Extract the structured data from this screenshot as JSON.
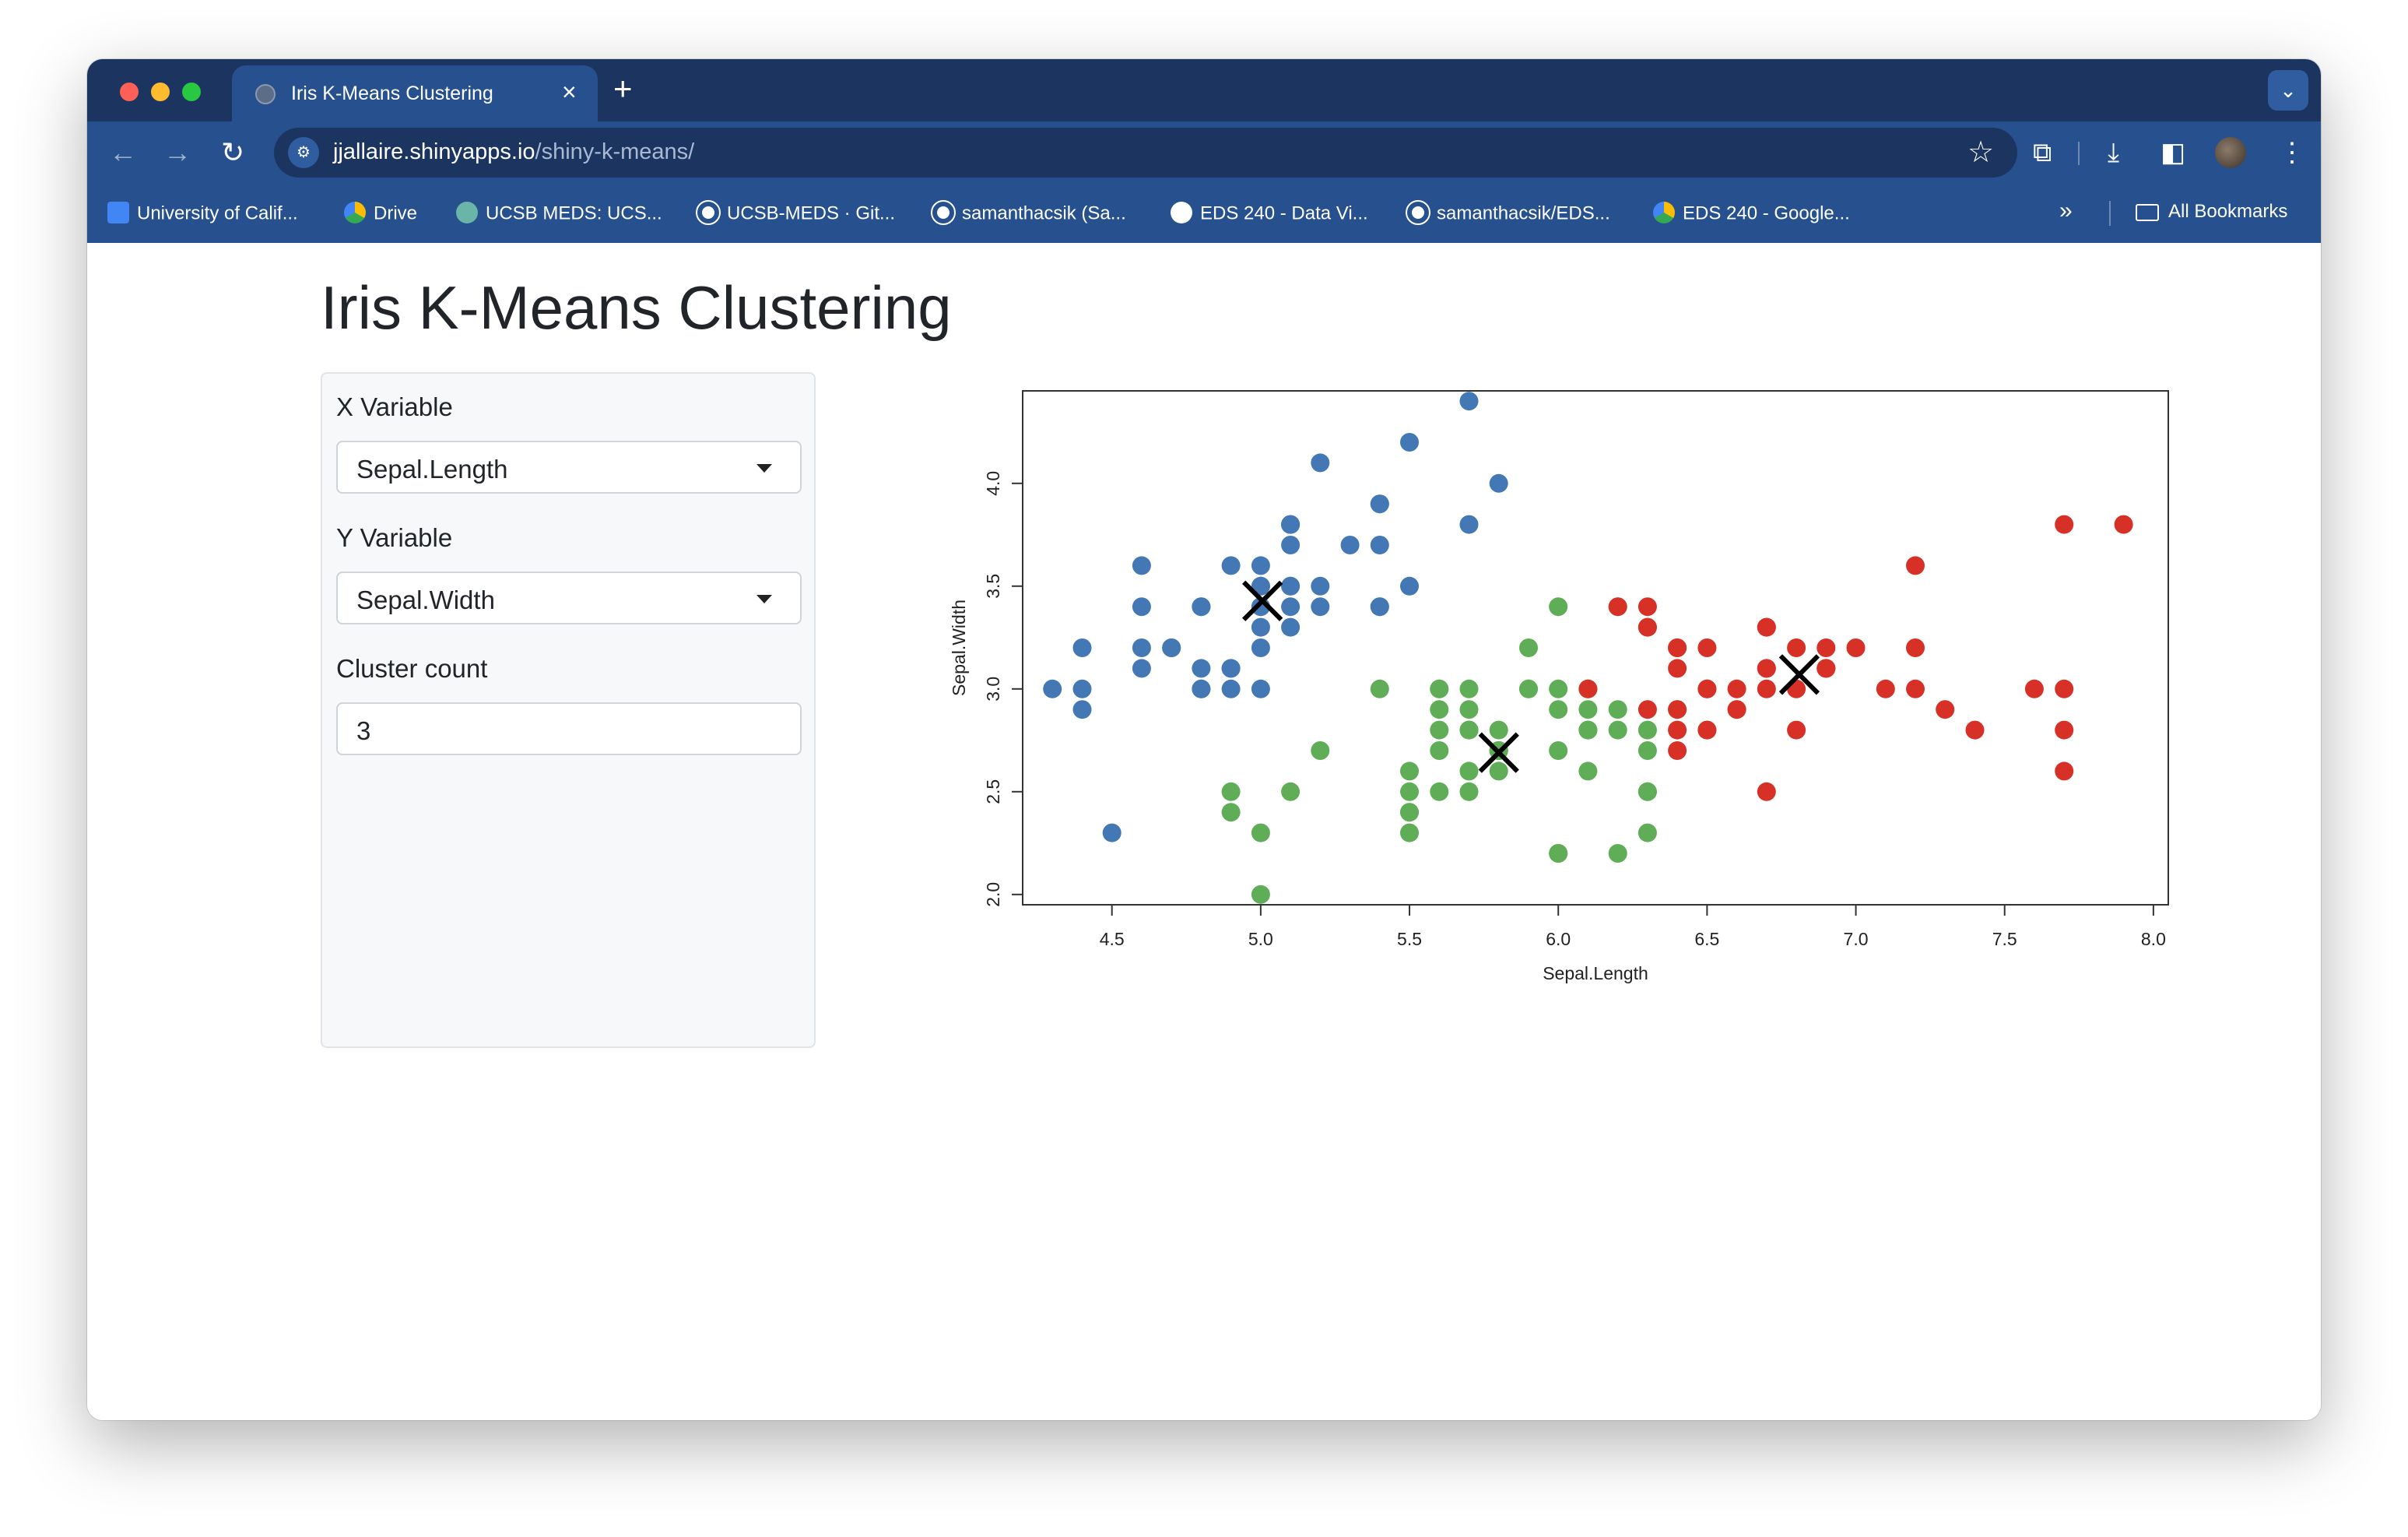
{
  "browser": {
    "tab_title": "Iris K-Means Clustering",
    "url_host": "jjallaire.shinyapps.io",
    "url_path": "/shiny-k-means/",
    "bookmarks": [
      "University of Calif...",
      "Drive",
      "UCSB MEDS: UCS...",
      "UCSB-MEDS · Git...",
      "samanthacsik (Sa...",
      "EDS 240 - Data Vi...",
      "samanthacsik/EDS...",
      "EDS 240 - Google..."
    ],
    "all_bookmarks": "All Bookmarks"
  },
  "page": {
    "title": "Iris K-Means Clustering",
    "x_label": "X Variable",
    "x_value": "Sepal.Length",
    "y_label": "Y Variable",
    "y_value": "Sepal.Width",
    "k_label": "Cluster count",
    "k_value": "3"
  },
  "colors": {
    "cluster_1": "#4378b4",
    "cluster_2": "#5fad56",
    "cluster_3": "#d73027",
    "center": "#000000"
  },
  "chart_data": {
    "type": "scatter",
    "xlabel": "Sepal.Length",
    "ylabel": "Sepal.Width",
    "xlim": [
      4.2,
      8.05
    ],
    "ylim": [
      1.95,
      4.45
    ],
    "xticks": [
      4.5,
      5.0,
      5.5,
      6.0,
      6.5,
      7.0,
      7.5,
      8.0
    ],
    "yticks": [
      2.0,
      2.5,
      3.0,
      3.5,
      4.0
    ],
    "xtick_labels": [
      "4.5",
      "5.0",
      "5.5",
      "6.0",
      "6.5",
      "7.0",
      "7.5",
      "8.0"
    ],
    "ytick_labels": [
      "2.0",
      "2.5",
      "3.0",
      "3.5",
      "4.0"
    ],
    "series": [
      {
        "color": "#4378b4",
        "points": [
          [
            5.1,
            3.5
          ],
          [
            4.9,
            3.0
          ],
          [
            4.7,
            3.2
          ],
          [
            4.6,
            3.1
          ],
          [
            5.0,
            3.6
          ],
          [
            5.4,
            3.9
          ],
          [
            4.6,
            3.4
          ],
          [
            5.0,
            3.4
          ],
          [
            4.4,
            2.9
          ],
          [
            4.9,
            3.1
          ],
          [
            5.4,
            3.7
          ],
          [
            4.8,
            3.4
          ],
          [
            4.8,
            3.0
          ],
          [
            4.3,
            3.0
          ],
          [
            5.8,
            4.0
          ],
          [
            5.7,
            4.4
          ],
          [
            5.4,
            3.9
          ],
          [
            5.1,
            3.5
          ],
          [
            5.7,
            3.8
          ],
          [
            5.1,
            3.8
          ],
          [
            5.4,
            3.4
          ],
          [
            5.1,
            3.7
          ],
          [
            4.6,
            3.6
          ],
          [
            5.1,
            3.3
          ],
          [
            4.8,
            3.4
          ],
          [
            5.0,
            3.0
          ],
          [
            5.0,
            3.4
          ],
          [
            5.2,
            3.5
          ],
          [
            5.2,
            3.4
          ],
          [
            4.7,
            3.2
          ],
          [
            4.8,
            3.1
          ],
          [
            5.4,
            3.4
          ],
          [
            5.2,
            4.1
          ],
          [
            5.5,
            4.2
          ],
          [
            4.9,
            3.1
          ],
          [
            5.0,
            3.2
          ],
          [
            5.5,
            3.5
          ],
          [
            4.9,
            3.6
          ],
          [
            4.4,
            3.0
          ],
          [
            5.1,
            3.4
          ],
          [
            5.0,
            3.5
          ],
          [
            4.5,
            2.3
          ],
          [
            4.4,
            3.2
          ],
          [
            5.0,
            3.5
          ],
          [
            5.1,
            3.8
          ],
          [
            4.8,
            3.0
          ],
          [
            5.1,
            3.8
          ],
          [
            4.6,
            3.2
          ],
          [
            5.3,
            3.7
          ],
          [
            5.0,
            3.3
          ]
        ]
      },
      {
        "color": "#5fad56",
        "points": [
          [
            5.5,
            2.3
          ],
          [
            6.5,
            2.8
          ],
          [
            5.7,
            2.8
          ],
          [
            6.3,
            3.3
          ],
          [
            4.9,
            2.4
          ],
          [
            6.6,
            2.9
          ],
          [
            5.2,
            2.7
          ],
          [
            5.0,
            2.0
          ],
          [
            5.9,
            3.0
          ],
          [
            6.0,
            2.2
          ],
          [
            6.1,
            2.9
          ],
          [
            5.6,
            2.9
          ],
          [
            5.6,
            3.0
          ],
          [
            5.8,
            2.7
          ],
          [
            6.2,
            2.2
          ],
          [
            5.6,
            2.5
          ],
          [
            5.9,
            3.2
          ],
          [
            6.1,
            2.8
          ],
          [
            6.3,
            2.5
          ],
          [
            6.1,
            2.8
          ],
          [
            6.4,
            2.9
          ],
          [
            5.7,
            2.6
          ],
          [
            6.0,
            2.9
          ],
          [
            5.5,
            2.4
          ],
          [
            5.5,
            2.4
          ],
          [
            5.8,
            2.7
          ],
          [
            6.0,
            2.7
          ],
          [
            5.4,
            3.0
          ],
          [
            6.0,
            3.4
          ],
          [
            6.3,
            2.3
          ],
          [
            5.6,
            3.0
          ],
          [
            5.5,
            2.5
          ],
          [
            5.5,
            2.6
          ],
          [
            6.1,
            3.0
          ],
          [
            5.8,
            2.6
          ],
          [
            5.0,
            2.3
          ],
          [
            5.6,
            2.7
          ],
          [
            5.7,
            3.0
          ],
          [
            5.7,
            2.9
          ],
          [
            6.2,
            2.9
          ],
          [
            5.1,
            2.5
          ],
          [
            5.7,
            2.8
          ],
          [
            5.8,
            2.7
          ],
          [
            4.9,
            2.5
          ],
          [
            5.7,
            2.5
          ],
          [
            5.8,
            2.8
          ],
          [
            6.0,
            2.2
          ],
          [
            5.6,
            2.8
          ],
          [
            6.3,
            2.7
          ],
          [
            6.2,
            2.8
          ],
          [
            6.1,
            3.0
          ],
          [
            6.3,
            2.8
          ],
          [
            6.1,
            2.6
          ],
          [
            6.0,
            3.0
          ],
          [
            5.8,
            2.7
          ],
          [
            6.3,
            2.5
          ],
          [
            5.9,
            3.0
          ],
          [
            6.2,
            3.4
          ]
        ]
      },
      {
        "color": "#d73027",
        "points": [
          [
            7.0,
            3.2
          ],
          [
            6.4,
            3.2
          ],
          [
            6.9,
            3.1
          ],
          [
            6.7,
            3.1
          ],
          [
            6.8,
            2.8
          ],
          [
            6.7,
            3.0
          ],
          [
            6.3,
            3.3
          ],
          [
            7.1,
            3.0
          ],
          [
            6.5,
            3.0
          ],
          [
            7.6,
            3.0
          ],
          [
            7.3,
            2.9
          ],
          [
            6.7,
            2.5
          ],
          [
            7.2,
            3.6
          ],
          [
            6.5,
            3.2
          ],
          [
            6.4,
            2.7
          ],
          [
            6.8,
            3.0
          ],
          [
            6.4,
            3.2
          ],
          [
            7.7,
            3.8
          ],
          [
            7.7,
            2.6
          ],
          [
            6.9,
            3.2
          ],
          [
            7.7,
            2.8
          ],
          [
            6.7,
            3.3
          ],
          [
            7.2,
            3.2
          ],
          [
            7.2,
            3.0
          ],
          [
            7.4,
            2.8
          ],
          [
            7.9,
            3.8
          ],
          [
            6.4,
            2.8
          ],
          [
            6.1,
            3.0
          ],
          [
            7.7,
            3.0
          ],
          [
            6.3,
            3.4
          ],
          [
            6.4,
            3.1
          ],
          [
            6.9,
            3.1
          ],
          [
            6.7,
            3.1
          ],
          [
            6.9,
            3.1
          ],
          [
            6.8,
            3.2
          ],
          [
            6.7,
            3.3
          ],
          [
            6.5,
            3.0
          ],
          [
            6.2,
            3.4
          ],
          [
            6.4,
            2.9
          ],
          [
            6.5,
            2.8
          ],
          [
            6.6,
            3.0
          ],
          [
            6.6,
            2.9
          ],
          [
            6.3,
            2.9
          ]
        ]
      }
    ],
    "centers": [
      [
        5.006,
        3.428
      ],
      [
        5.8,
        2.69
      ],
      [
        6.81,
        3.07
      ]
    ]
  }
}
